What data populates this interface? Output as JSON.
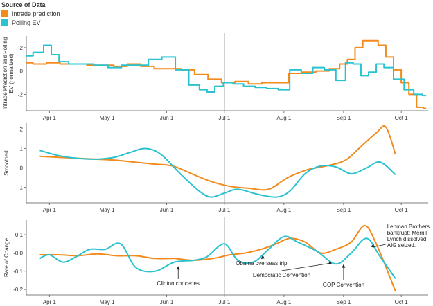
{
  "legend": {
    "title": "Source of Data",
    "items": [
      {
        "label": "Intrade prediction",
        "color": "#F28A1C"
      },
      {
        "label": "Polling EV",
        "color": "#29C3D0"
      }
    ]
  },
  "colors": {
    "intrade": "#F28A1C",
    "polling": "#29C3D0",
    "marker": "#9a9a9a",
    "zero": "#c8c8c8"
  },
  "chart_data": [
    {
      "type": "line",
      "panel": "raw",
      "ylabel": "Intrade Prediction and Polling EV (normalized)",
      "ylim": [
        -3.4,
        3.0
      ],
      "yticks": [
        2,
        0,
        -2
      ],
      "x_ticks": [
        "Apr 1",
        "May 1",
        "Jun 1",
        "Jul 1",
        "Aug 1",
        "Sep 1",
        "Oct 1"
      ],
      "xlim": [
        "2008-03-20",
        "2008-10-15"
      ],
      "vline": "2008-07-01",
      "series": [
        {
          "name": "Intrade prediction",
          "color": "#F28A1C",
          "x": [
            "2008-03-20",
            "2008-03-27",
            "2008-04-03",
            "2008-04-10",
            "2008-04-17",
            "2008-04-24",
            "2008-05-01",
            "2008-05-08",
            "2008-05-15",
            "2008-05-22",
            "2008-05-29",
            "2008-06-05",
            "2008-06-12",
            "2008-06-19",
            "2008-06-26",
            "2008-07-03",
            "2008-07-10",
            "2008-07-17",
            "2008-07-24",
            "2008-07-31",
            "2008-08-07",
            "2008-08-14",
            "2008-08-21",
            "2008-08-28",
            "2008-09-01",
            "2008-09-05",
            "2008-09-09",
            "2008-09-13",
            "2008-09-17",
            "2008-09-21",
            "2008-09-25",
            "2008-09-29",
            "2008-10-03",
            "2008-10-07",
            "2008-10-11",
            "2008-10-14"
          ],
          "y": [
            0.7,
            0.6,
            0.7,
            0.6,
            0.6,
            0.5,
            0.5,
            0.4,
            0.6,
            0.4,
            0.2,
            0.2,
            0.1,
            -0.3,
            -0.7,
            -1.0,
            -0.9,
            -1.1,
            -1.0,
            -1.0,
            -0.2,
            -0.1,
            0.0,
            0.2,
            0.6,
            1.0,
            2.0,
            2.6,
            2.6,
            2.2,
            1.2,
            0.1,
            -1.0,
            -2.0,
            -3.1,
            -3.2
          ]
        },
        {
          "name": "Polling EV",
          "color": "#29C3D0",
          "x": [
            "2008-03-20",
            "2008-03-27",
            "2008-03-31",
            "2008-04-04",
            "2008-04-08",
            "2008-04-14",
            "2008-04-20",
            "2008-04-28",
            "2008-05-05",
            "2008-05-12",
            "2008-05-19",
            "2008-05-26",
            "2008-06-02",
            "2008-06-09",
            "2008-06-16",
            "2008-06-20",
            "2008-06-24",
            "2008-06-28",
            "2008-07-03",
            "2008-07-08",
            "2008-07-14",
            "2008-07-20",
            "2008-07-26",
            "2008-08-01",
            "2008-08-07",
            "2008-08-13",
            "2008-08-19",
            "2008-08-25",
            "2008-08-31",
            "2008-09-04",
            "2008-09-08",
            "2008-09-12",
            "2008-09-16",
            "2008-09-20",
            "2008-09-24",
            "2008-09-30",
            "2008-10-05",
            "2008-10-10",
            "2008-10-14"
          ],
          "y": [
            1.3,
            1.6,
            2.2,
            1.4,
            0.8,
            0.6,
            0.6,
            0.5,
            0.3,
            0.5,
            0.5,
            1.0,
            1.2,
            0.1,
            -1.2,
            -1.6,
            -1.8,
            -1.3,
            -1.0,
            -1.1,
            -1.3,
            -1.4,
            -1.5,
            -1.6,
            0.1,
            -0.2,
            0.3,
            0.1,
            -0.8,
            0.7,
            0.6,
            -0.4,
            -0.1,
            0.6,
            0.3,
            -0.7,
            -1.6,
            -2.0,
            -2.1
          ]
        }
      ]
    },
    {
      "type": "line",
      "panel": "smoothed",
      "ylabel": "Smoothed",
      "ylim": [
        -1.8,
        2.3
      ],
      "yticks": [
        2,
        1,
        0,
        -1
      ],
      "x_ticks": [
        "Apr 1",
        "May 1",
        "Jun 1",
        "Jul 1",
        "Aug 1",
        "Sep 1",
        "Oct 1"
      ],
      "xlim": [
        "2008-03-20",
        "2008-10-15"
      ],
      "vline": "2008-07-01",
      "series": [
        {
          "name": "Intrade prediction",
          "color": "#F28A1C",
          "x": [
            "2008-03-27",
            "2008-04-05",
            "2008-04-15",
            "2008-04-25",
            "2008-05-05",
            "2008-05-15",
            "2008-05-25",
            "2008-06-04",
            "2008-06-14",
            "2008-06-24",
            "2008-07-04",
            "2008-07-14",
            "2008-07-24",
            "2008-08-03",
            "2008-08-13",
            "2008-08-23",
            "2008-09-02",
            "2008-09-10",
            "2008-09-18",
            "2008-09-23",
            "2008-09-28"
          ],
          "y": [
            0.6,
            0.55,
            0.5,
            0.45,
            0.4,
            0.3,
            0.2,
            0.1,
            -0.3,
            -0.7,
            -0.95,
            -1.05,
            -1.1,
            -0.5,
            -0.1,
            0.1,
            0.4,
            1.1,
            1.8,
            2.1,
            0.7
          ]
        },
        {
          "name": "Polling EV",
          "color": "#29C3D0",
          "x": [
            "2008-03-27",
            "2008-04-05",
            "2008-04-15",
            "2008-04-25",
            "2008-05-05",
            "2008-05-13",
            "2008-05-21",
            "2008-05-29",
            "2008-06-08",
            "2008-06-18",
            "2008-06-24",
            "2008-07-01",
            "2008-07-08",
            "2008-07-18",
            "2008-07-28",
            "2008-08-04",
            "2008-08-12",
            "2008-08-20",
            "2008-08-28",
            "2008-09-05",
            "2008-09-13",
            "2008-09-20",
            "2008-09-28"
          ],
          "y": [
            0.9,
            0.65,
            0.5,
            0.45,
            0.55,
            0.8,
            1.0,
            0.7,
            -0.3,
            -1.2,
            -1.5,
            -1.3,
            -1.1,
            -1.35,
            -1.5,
            -1.2,
            -0.3,
            0.1,
            0.05,
            -0.3,
            0.0,
            0.3,
            -0.35
          ]
        }
      ]
    },
    {
      "type": "line",
      "panel": "rate-of-change",
      "ylabel": "Rate of Change",
      "ylim": [
        -0.23,
        0.18
      ],
      "yticks": [
        0.1,
        0.0,
        -0.1,
        -0.2
      ],
      "ytick_labels": [
        "0.1",
        "-0.0",
        "-0.1",
        "-0.2"
      ],
      "x_ticks": [
        "Apr 1",
        "May 1",
        "Jun 1",
        "Jul 1",
        "Aug 1",
        "Sep 1",
        "Oct 1"
      ],
      "xlim": [
        "2008-03-20",
        "2008-10-15"
      ],
      "vline": "2008-07-01",
      "series": [
        {
          "name": "Intrade prediction",
          "color": "#F28A1C",
          "x": [
            "2008-03-27",
            "2008-04-06",
            "2008-04-16",
            "2008-04-26",
            "2008-05-06",
            "2008-05-16",
            "2008-05-26",
            "2008-06-05",
            "2008-06-15",
            "2008-06-25",
            "2008-07-04",
            "2008-07-12",
            "2008-07-20",
            "2008-07-28",
            "2008-08-04",
            "2008-08-12",
            "2008-08-20",
            "2008-08-28",
            "2008-09-05",
            "2008-09-12",
            "2008-09-18",
            "2008-09-28"
          ],
          "y": [
            -0.01,
            -0.01,
            -0.015,
            -0.005,
            -0.015,
            -0.015,
            -0.03,
            -0.03,
            -0.04,
            -0.03,
            -0.01,
            0.0,
            0.02,
            0.05,
            0.08,
            0.06,
            0.0,
            0.02,
            0.06,
            0.15,
            0.05,
            -0.21
          ]
        },
        {
          "name": "Polling EV",
          "color": "#29C3D0",
          "x": [
            "2008-03-27",
            "2008-04-01",
            "2008-04-08",
            "2008-04-15",
            "2008-04-22",
            "2008-04-30",
            "2008-05-08",
            "2008-05-16",
            "2008-05-26",
            "2008-06-05",
            "2008-06-15",
            "2008-06-22",
            "2008-07-01",
            "2008-07-08",
            "2008-07-16",
            "2008-07-24",
            "2008-08-01",
            "2008-08-08",
            "2008-08-18",
            "2008-08-28",
            "2008-09-05",
            "2008-09-13",
            "2008-09-20",
            "2008-09-28"
          ],
          "y": [
            -0.03,
            -0.01,
            -0.05,
            -0.02,
            0.02,
            0.02,
            0.05,
            -0.08,
            -0.1,
            -0.05,
            -0.04,
            -0.02,
            0.05,
            -0.04,
            -0.05,
            0.02,
            0.09,
            0.06,
            0.01,
            -0.06,
            0.0,
            0.08,
            -0.02,
            -0.14
          ]
        }
      ],
      "annotations": [
        {
          "text": "Clinton concedes",
          "date": "2008-06-07",
          "value": -0.06
        },
        {
          "text": "Obama overseas trip",
          "date": "2008-07-21",
          "value": 0.0
        },
        {
          "text": "Democratic Convention",
          "date": "2008-08-25",
          "value": -0.03
        },
        {
          "text": "GOP Convention",
          "date": "2008-09-01",
          "value": -0.05
        },
        {
          "text": "Lehman Brothers bankrupt; Merrill Lynch dissolved; AIG seized.",
          "lines": [
            "Lehman Brothers",
            "bankrupt; Merrill",
            "Lynch dissolved;",
            "AIG seized."
          ],
          "date": "2008-09-15",
          "value": 0.04
        }
      ]
    }
  ]
}
